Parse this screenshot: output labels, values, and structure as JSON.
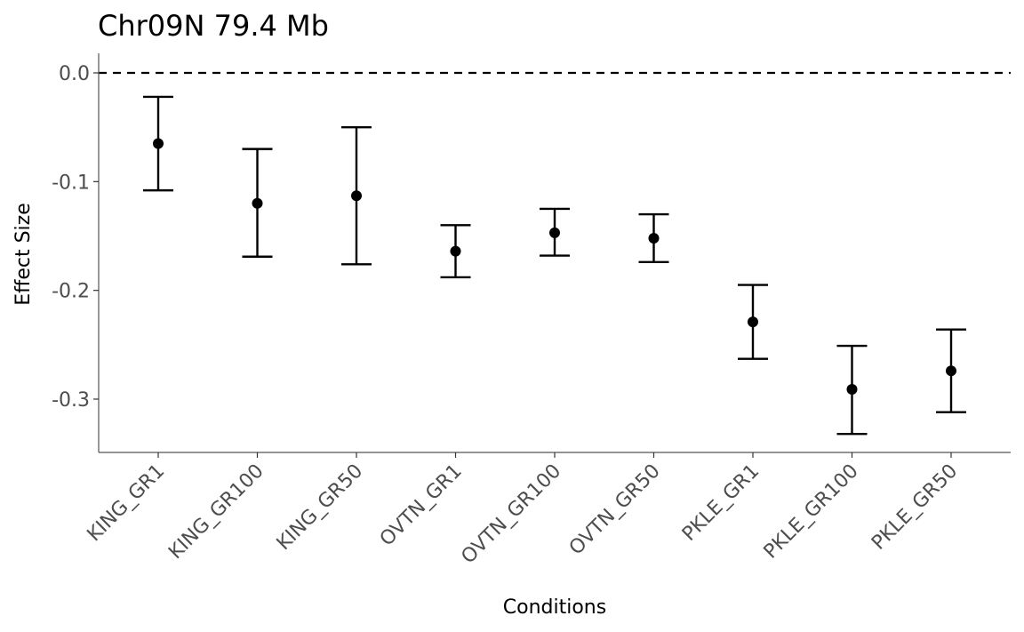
{
  "chart_data": {
    "type": "scatter",
    "subtype": "point-with-error-bars",
    "title": "Chr09N 79.4 Mb",
    "xlabel": "Conditions",
    "ylabel": "Effect Size",
    "ylim": [
      -0.349,
      0.0
    ],
    "y_ticks": [
      0.0,
      -0.1,
      -0.2,
      -0.3
    ],
    "y_tick_labels": [
      "0.0",
      "-0.1",
      "-0.2",
      "-0.3"
    ],
    "categories": [
      "KING_GR1",
      "KING_GR100",
      "KING_GR50",
      "OVTN_GR1",
      "OVTN_GR100",
      "OVTN_GR50",
      "PKLE_GR1",
      "PKLE_GR100",
      "PKLE_GR50"
    ],
    "series": [
      {
        "values": [
          -0.065,
          -0.12,
          -0.113,
          -0.164,
          -0.147,
          -0.152,
          -0.229,
          -0.291,
          -0.274
        ],
        "lower": [
          -0.108,
          -0.169,
          -0.176,
          -0.188,
          -0.168,
          -0.174,
          -0.263,
          -0.332,
          -0.312
        ],
        "upper": [
          -0.022,
          -0.07,
          -0.05,
          -0.14,
          -0.125,
          -0.13,
          -0.195,
          -0.251,
          -0.236
        ],
        "color": "#000000"
      }
    ],
    "reference_line": {
      "y": 0.0,
      "style": "dashed",
      "color": "#000000"
    },
    "grid": false,
    "legend": "none"
  }
}
